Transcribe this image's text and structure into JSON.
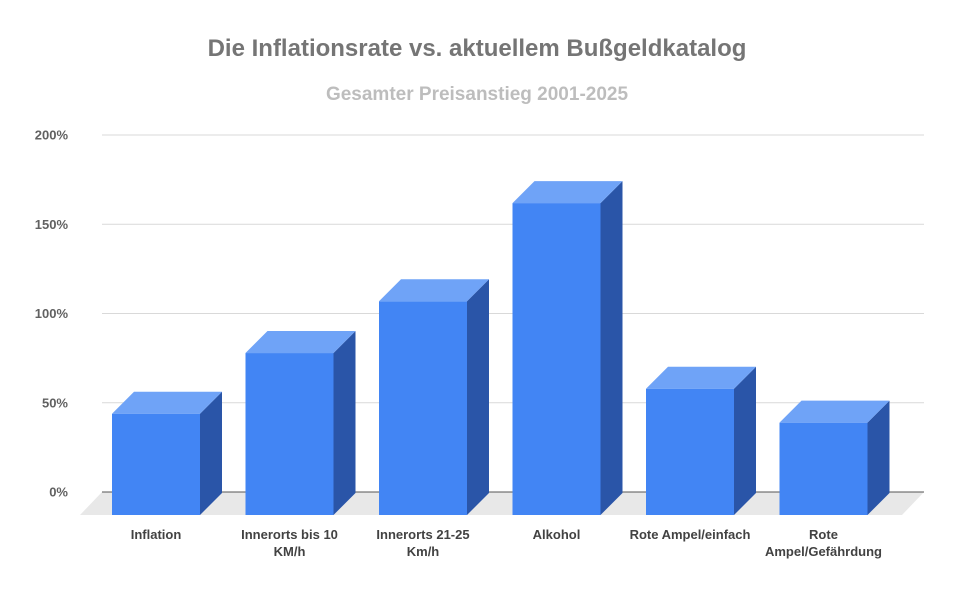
{
  "chart_data": {
    "type": "bar",
    "title": "Die Inflationsrate vs. aktuellem Bußgeldkatalog",
    "subtitle": "Gesamter Preisanstieg 2001-2025",
    "categories": [
      "Inflation",
      "Innerorts bis 10 KM/h",
      "Innerorts 21-25 Km/h",
      "Alkohol",
      "Rote Ampel/einfach",
      "Rote Ampel/Gefährdung"
    ],
    "category_lines": [
      [
        "Inflation"
      ],
      [
        "Innerorts bis 10",
        "KM/h"
      ],
      [
        "Innerorts 21-25",
        "Km/h"
      ],
      [
        "Alkohol"
      ],
      [
        "Rote Ampel/einfach"
      ],
      [
        "Rote",
        "Ampel/Gefährdung"
      ]
    ],
    "values": [
      50,
      84,
      113,
      168,
      64,
      45
    ],
    "ylim": [
      0,
      200
    ],
    "yticks": [
      0,
      50,
      100,
      150,
      200
    ],
    "ytick_labels": [
      "0%",
      "50%",
      "100%",
      "150%",
      "200%"
    ],
    "grid": true,
    "bar_style": "3d",
    "colors": {
      "front": "#4285f4",
      "top": "#6fa3f7",
      "side": "#2a55a8",
      "floor": "#e8e8e8",
      "grid": "#d9d9d9"
    }
  }
}
